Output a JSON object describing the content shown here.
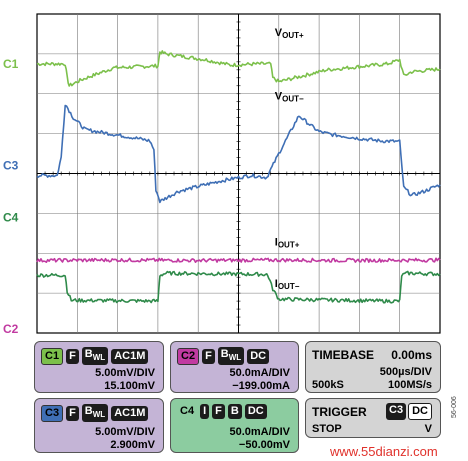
{
  "chart_data": {
    "type": "line",
    "title": "",
    "xlabel": "",
    "ylabel": "",
    "grid": true,
    "x_divisions": 10,
    "y_divisions": 8,
    "series": [
      {
        "name": "C1",
        "color": "#7cc04b",
        "x": [
          0,
          0.7,
          0.75,
          0.8,
          1.1,
          1.9,
          3.0,
          3.05,
          3.2,
          4.2,
          4.8,
          5.5,
          5.8,
          5.85,
          6.0,
          7.2,
          8.2,
          8.7,
          9.0,
          9.1,
          9.3,
          10.0
        ],
        "y": [
          6.75,
          6.75,
          6.4,
          6.2,
          6.35,
          6.65,
          6.7,
          7.05,
          7.0,
          6.85,
          6.72,
          6.75,
          6.75,
          6.4,
          6.3,
          6.6,
          6.7,
          6.75,
          6.85,
          6.45,
          6.55,
          6.62
        ]
      },
      {
        "name": "C3",
        "color": "#3f6fb5",
        "x": [
          0,
          0.5,
          0.6,
          0.7,
          0.9,
          1.2,
          1.8,
          2.5,
          2.8,
          2.9,
          2.95,
          3.05,
          3.5,
          4.5,
          5.0,
          5.3,
          5.5,
          5.7,
          6.0,
          6.5,
          6.8,
          7.0,
          7.3,
          8.0,
          8.5,
          9.0,
          9.1,
          9.3,
          9.6,
          10.0
        ],
        "y": [
          3.95,
          3.95,
          4.4,
          5.75,
          5.4,
          5.1,
          5.0,
          4.88,
          4.82,
          4.6,
          3.6,
          3.3,
          3.55,
          3.8,
          3.9,
          3.95,
          3.93,
          3.9,
          4.5,
          5.45,
          5.2,
          5.05,
          4.98,
          4.88,
          4.82,
          4.8,
          3.65,
          3.45,
          3.55,
          3.72
        ]
      },
      {
        "name": "C4",
        "color": "#2f8a4a",
        "x": [
          0,
          0.7,
          0.75,
          0.85,
          3.0,
          3.05,
          3.2,
          5.7,
          5.75,
          5.85,
          6.0,
          8.7,
          9.0,
          9.05,
          9.2,
          10.0
        ],
        "y": [
          1.45,
          1.45,
          1.05,
          0.82,
          0.8,
          1.45,
          1.5,
          1.47,
          1.4,
          1.1,
          0.85,
          0.8,
          0.8,
          1.45,
          1.5,
          1.48
        ]
      },
      {
        "name": "C2",
        "color": "#c13aa1",
        "x": [
          0,
          2.0,
          4.0,
          6.0,
          8.0,
          10.0
        ],
        "y": [
          1.82,
          1.83,
          1.82,
          1.83,
          1.82,
          1.83
        ]
      }
    ],
    "channel_markers": [
      {
        "label": "C1",
        "level": 6.75
      },
      {
        "label": "C3",
        "level": 4.2
      },
      {
        "label": "C4",
        "level": 2.9
      },
      {
        "label": "C2",
        "level": 0.1
      }
    ],
    "trace_labels": [
      {
        "main": "V",
        "sub": "OUT+",
        "x": 5.9,
        "y": 7.45
      },
      {
        "main": "V",
        "sub": "OUT−",
        "x": 5.9,
        "y": 5.85
      },
      {
        "main": "I",
        "sub": "OUT+",
        "x": 5.9,
        "y": 2.2
      },
      {
        "main": "I",
        "sub": "OUT−",
        "x": 5.9,
        "y": 1.15
      }
    ]
  },
  "colors": {
    "c1": "#7cc04b",
    "c2": "#c13aa1",
    "c3": "#3f6fb5",
    "c4": "#2f8a4a",
    "c1_box": "#c4b4d6",
    "c2_box": "#c4b4d6",
    "c3_box": "#c4b4d6",
    "c4_box": "#8ccca0",
    "panel_gray": "#d4d4d4"
  },
  "panels": {
    "c1": {
      "ch": "C1",
      "tags": [
        "F",
        "BWL",
        "AC1M"
      ],
      "line1": "5.00mV/DIV",
      "line2": "15.100mV"
    },
    "c2": {
      "ch": "C2",
      "tags": [
        "F",
        "BWL",
        "DC"
      ],
      "line1": "50.0mA/DIV",
      "line2": "−199.00mA"
    },
    "c3": {
      "ch": "C3",
      "tags": [
        "F",
        "BWL",
        "AC1M"
      ],
      "line1": "5.00mV/DIV",
      "line2": "2.900mV"
    },
    "c4": {
      "ch": "C4",
      "tags": [
        "I",
        "F",
        "B",
        "DC"
      ],
      "line1": "50.0mA/DIV",
      "line2": "−50.00mV"
    },
    "timebase": {
      "title": "TIMEBASE",
      "value": "0.00ms",
      "div": "500µs/DIV",
      "samples": "500kS",
      "rate": "100MS/s"
    },
    "trigger": {
      "title": "TRIGGER",
      "ch": "C3",
      "coupling": "DC",
      "mode": "STOP",
      "unit": "V"
    }
  },
  "side_code": "56-006",
  "watermark": "www.55dianzi.com"
}
